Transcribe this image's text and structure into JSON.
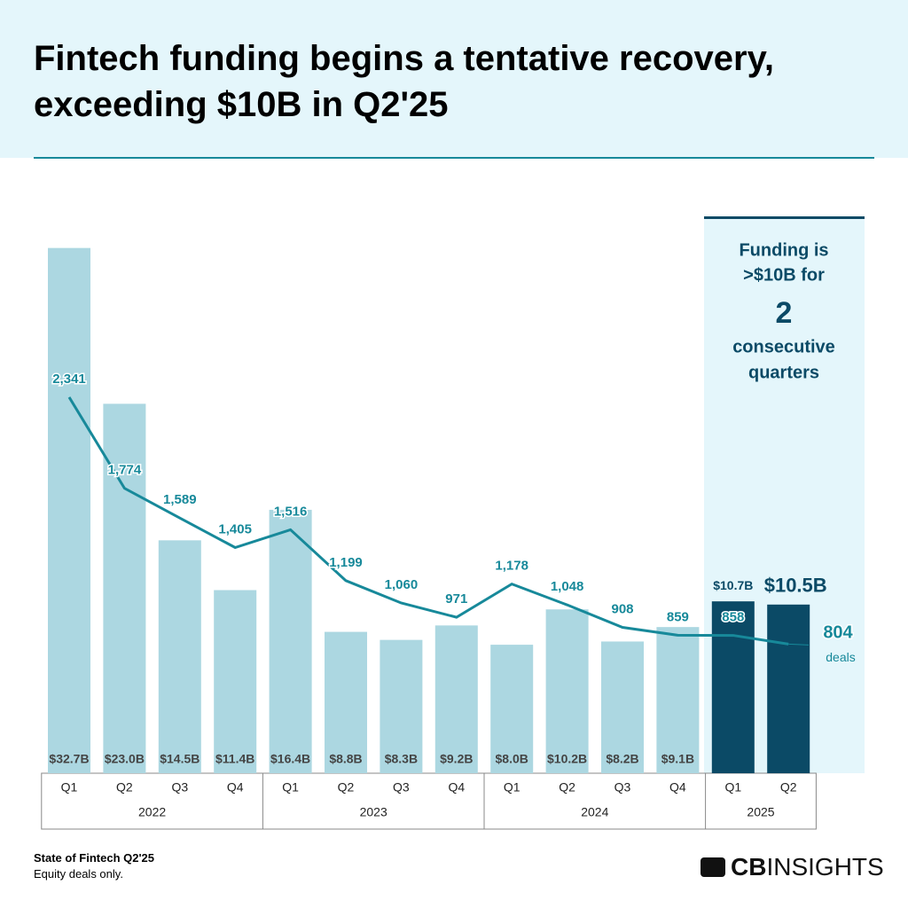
{
  "header": {
    "title": "Fintech funding begins a tentative recovery, exceeding $10B in Q2'25"
  },
  "chart_data": {
    "type": "bar",
    "groups": [
      {
        "name": "2022",
        "categories": [
          "Q1",
          "Q2",
          "Q3",
          "Q4"
        ]
      },
      {
        "name": "2023",
        "categories": [
          "Q1",
          "Q2",
          "Q3",
          "Q4"
        ]
      },
      {
        "name": "2024",
        "categories": [
          "Q1",
          "Q2",
          "Q3",
          "Q4"
        ]
      },
      {
        "name": "2025",
        "categories": [
          "Q1",
          "Q2"
        ]
      }
    ],
    "ylim": [
      0,
      35
    ],
    "y2lim": [
      0,
      3500
    ],
    "series": [
      {
        "type": "bar",
        "color": "#acd7e1",
        "colors": [
          "#acd7e1",
          "#acd7e1",
          "#acd7e1",
          "#acd7e1",
          "#acd7e1",
          "#acd7e1",
          "#acd7e1",
          "#acd7e1",
          "#acd7e1",
          "#acd7e1",
          "#acd7e1",
          "#acd7e1",
          "#0b4a66",
          "#0b4a66"
        ],
        "values": [
          32.7,
          23.0,
          14.5,
          11.4,
          16.4,
          8.8,
          8.3,
          9.2,
          8.0,
          10.2,
          8.2,
          9.1,
          10.7,
          10.5
        ],
        "value_labels": [
          "$32.7B",
          "$23.0B",
          "$14.5B",
          "$11.4B",
          "$16.4B",
          "$8.8B",
          "$8.3B",
          "$9.2B",
          "$8.0B",
          "$10.2B",
          "$8.2B",
          "$9.1B",
          "$10.7B",
          "$10.5B"
        ]
      },
      {
        "type": "line",
        "axis": "y2",
        "name": "deals",
        "color": "#17899a",
        "values": [
          2341,
          1774,
          1589,
          1405,
          1516,
          1199,
          1060,
          971,
          1178,
          1048,
          908,
          859,
          858,
          804
        ],
        "value_labels": [
          "2,341",
          "1,774",
          "1,589",
          "1,405",
          "1,516",
          "1,199",
          "1,060",
          "971",
          "1,178",
          "1,048",
          "908",
          "859",
          "858",
          "804"
        ]
      }
    ],
    "callout": [
      "Funding is",
      ">$10B for",
      "2",
      "consecutive",
      "quarters"
    ],
    "grid": false
  },
  "footer": {
    "source": "State of Fintech Q2'25",
    "note": "Equity deals only.",
    "logo": {
      "bold": "CB",
      "light": "INSIGHTS"
    }
  }
}
